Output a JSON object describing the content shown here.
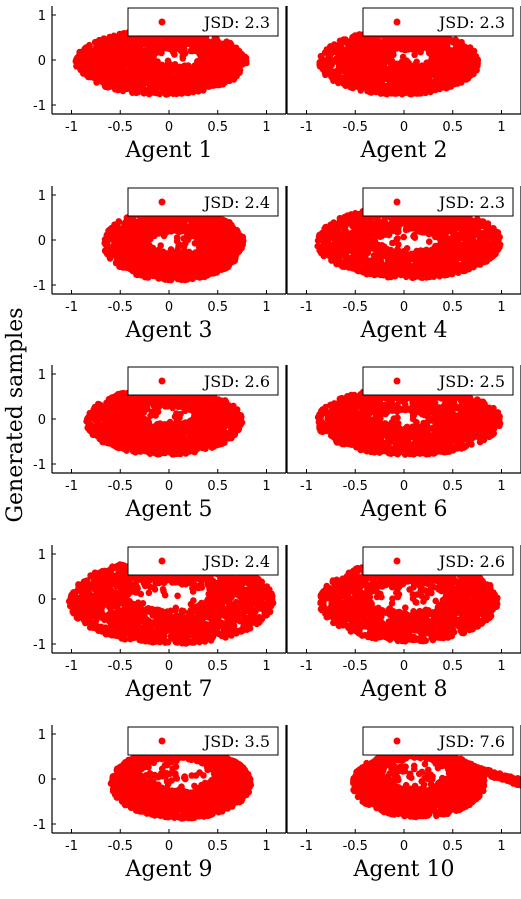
{
  "ylabel": "Generated samples",
  "colors": {
    "points": "#ff0000",
    "axis": "#000000"
  },
  "chart_data": [
    {
      "type": "scatter",
      "title": "Agent 1",
      "legend": "JSD: 2.3",
      "xlim": [
        -1.2,
        1.2
      ],
      "ylim": [
        -1.2,
        1.2
      ],
      "xticks": [
        "-1",
        "-0.5",
        "0",
        "0.5",
        "1"
      ],
      "yticks": [
        "1",
        "0",
        "-1"
      ],
      "cloud": {
        "cx": -0.08,
        "cy": -0.05,
        "rx": 0.88,
        "ry": 0.72,
        "hx": 0.08,
        "hy": 0.05,
        "hrx": 0.22,
        "hry": 0.18
      }
    },
    {
      "type": "scatter",
      "title": "Agent 2",
      "legend": "JSD: 2.3",
      "xlim": [
        -1.2,
        1.2
      ],
      "ylim": [
        -1.2,
        1.2
      ],
      "xticks": [
        "-1",
        "-0.5",
        "0",
        "0.5",
        "1"
      ],
      "yticks": [
        "1",
        "0",
        "-1"
      ],
      "cloud": {
        "cx": -0.05,
        "cy": -0.05,
        "rx": 0.82,
        "ry": 0.72,
        "hx": 0.08,
        "hy": 0.05,
        "hrx": 0.22,
        "hry": 0.18
      }
    },
    {
      "type": "scatter",
      "title": "Agent 3",
      "legend": "JSD: 2.4",
      "xlim": [
        -1.2,
        1.2
      ],
      "ylim": [
        -1.2,
        1.2
      ],
      "xticks": [
        "-1",
        "-0.5",
        "0",
        "0.5",
        "1"
      ],
      "yticks": [
        "1",
        "0",
        "-1"
      ],
      "cloud": {
        "cx": 0.05,
        "cy": -0.08,
        "rx": 0.72,
        "ry": 0.82,
        "hx": 0.05,
        "hy": -0.05,
        "hrx": 0.26,
        "hry": 0.22
      }
    },
    {
      "type": "scatter",
      "title": "Agent 4",
      "legend": "JSD: 2.3",
      "xlim": [
        -1.2,
        1.2
      ],
      "ylim": [
        -1.2,
        1.2
      ],
      "xticks": [
        "-1",
        "-0.5",
        "0",
        "0.5",
        "1"
      ],
      "yticks": [
        "1",
        "0",
        "-1"
      ],
      "cloud": {
        "cx": 0.05,
        "cy": -0.05,
        "rx": 0.95,
        "ry": 0.8,
        "hx": 0.05,
        "hy": -0.03,
        "hrx": 0.3,
        "hry": 0.22
      }
    },
    {
      "type": "scatter",
      "title": "Agent 5",
      "legend": "JSD: 2.6",
      "xlim": [
        -1.2,
        1.2
      ],
      "ylim": [
        -1.2,
        1.2
      ],
      "xticks": [
        "-1",
        "-0.5",
        "0",
        "0.5",
        "1"
      ],
      "yticks": [
        "1",
        "0",
        "-1"
      ],
      "cloud": {
        "cx": -0.05,
        "cy": -0.05,
        "rx": 0.8,
        "ry": 0.75,
        "hx": 0.0,
        "hy": 0.08,
        "hrx": 0.26,
        "hry": 0.2
      }
    },
    {
      "type": "scatter",
      "title": "Agent 6",
      "legend": "JSD: 2.5",
      "xlim": [
        -1.2,
        1.2
      ],
      "ylim": [
        -1.2,
        1.2
      ],
      "xticks": [
        "-1",
        "-0.5",
        "0",
        "0.5",
        "1"
      ],
      "yticks": [
        "1",
        "0",
        "-1"
      ],
      "cloud": {
        "cx": 0.05,
        "cy": -0.05,
        "rx": 0.95,
        "ry": 0.75,
        "hx": 0.0,
        "hy": 0.0,
        "hrx": 0.22,
        "hry": 0.18
      }
    },
    {
      "type": "scatter",
      "title": "Agent 7",
      "legend": "JSD: 2.4",
      "xlim": [
        -1.2,
        1.2
      ],
      "ylim": [
        -1.2,
        1.2
      ],
      "xticks": [
        "-1",
        "-0.5",
        "0",
        "0.5",
        "1"
      ],
      "yticks": [
        "1",
        "0",
        "-1"
      ],
      "cloud": {
        "cx": 0.02,
        "cy": -0.05,
        "rx": 1.05,
        "ry": 0.95,
        "hx": 0.0,
        "hy": 0.05,
        "hrx": 0.4,
        "hry": 0.3
      }
    },
    {
      "type": "scatter",
      "title": "Agent 8",
      "legend": "JSD: 2.6",
      "xlim": [
        -1.2,
        1.2
      ],
      "ylim": [
        -1.2,
        1.2
      ],
      "xticks": [
        "-1",
        "-0.5",
        "0",
        "0.5",
        "1"
      ],
      "yticks": [
        "1",
        "0",
        "-1"
      ],
      "cloud": {
        "cx": 0.05,
        "cy": -0.05,
        "rx": 0.92,
        "ry": 0.9,
        "hx": 0.02,
        "hy": 0.02,
        "hrx": 0.38,
        "hry": 0.3
      }
    },
    {
      "type": "scatter",
      "title": "Agent 9",
      "legend": "JSD: 3.5",
      "xlim": [
        -1.2,
        1.2
      ],
      "ylim": [
        -1.2,
        1.2
      ],
      "xticks": [
        "-1",
        "-0.5",
        "0",
        "0.5",
        "1"
      ],
      "yticks": [
        "1",
        "0",
        "-1"
      ],
      "cloud": {
        "cx": 0.12,
        "cy": -0.1,
        "rx": 0.72,
        "ry": 0.78,
        "hx": 0.08,
        "hy": 0.1,
        "hrx": 0.36,
        "hry": 0.36
      }
    },
    {
      "type": "scatter",
      "title": "Agent 10",
      "legend": "JSD: 7.6",
      "xlim": [
        -1.2,
        1.2
      ],
      "ylim": [
        -1.2,
        1.2
      ],
      "xticks": [
        "-1",
        "-0.5",
        "0",
        "0.5",
        "1"
      ],
      "yticks": [
        "1",
        "0",
        "-1"
      ],
      "cloud": {
        "cx": 0.15,
        "cy": -0.1,
        "rx": 0.68,
        "ry": 0.75,
        "hx": 0.12,
        "hy": 0.12,
        "hrx": 0.34,
        "hry": 0.34,
        "tail": true
      }
    }
  ]
}
